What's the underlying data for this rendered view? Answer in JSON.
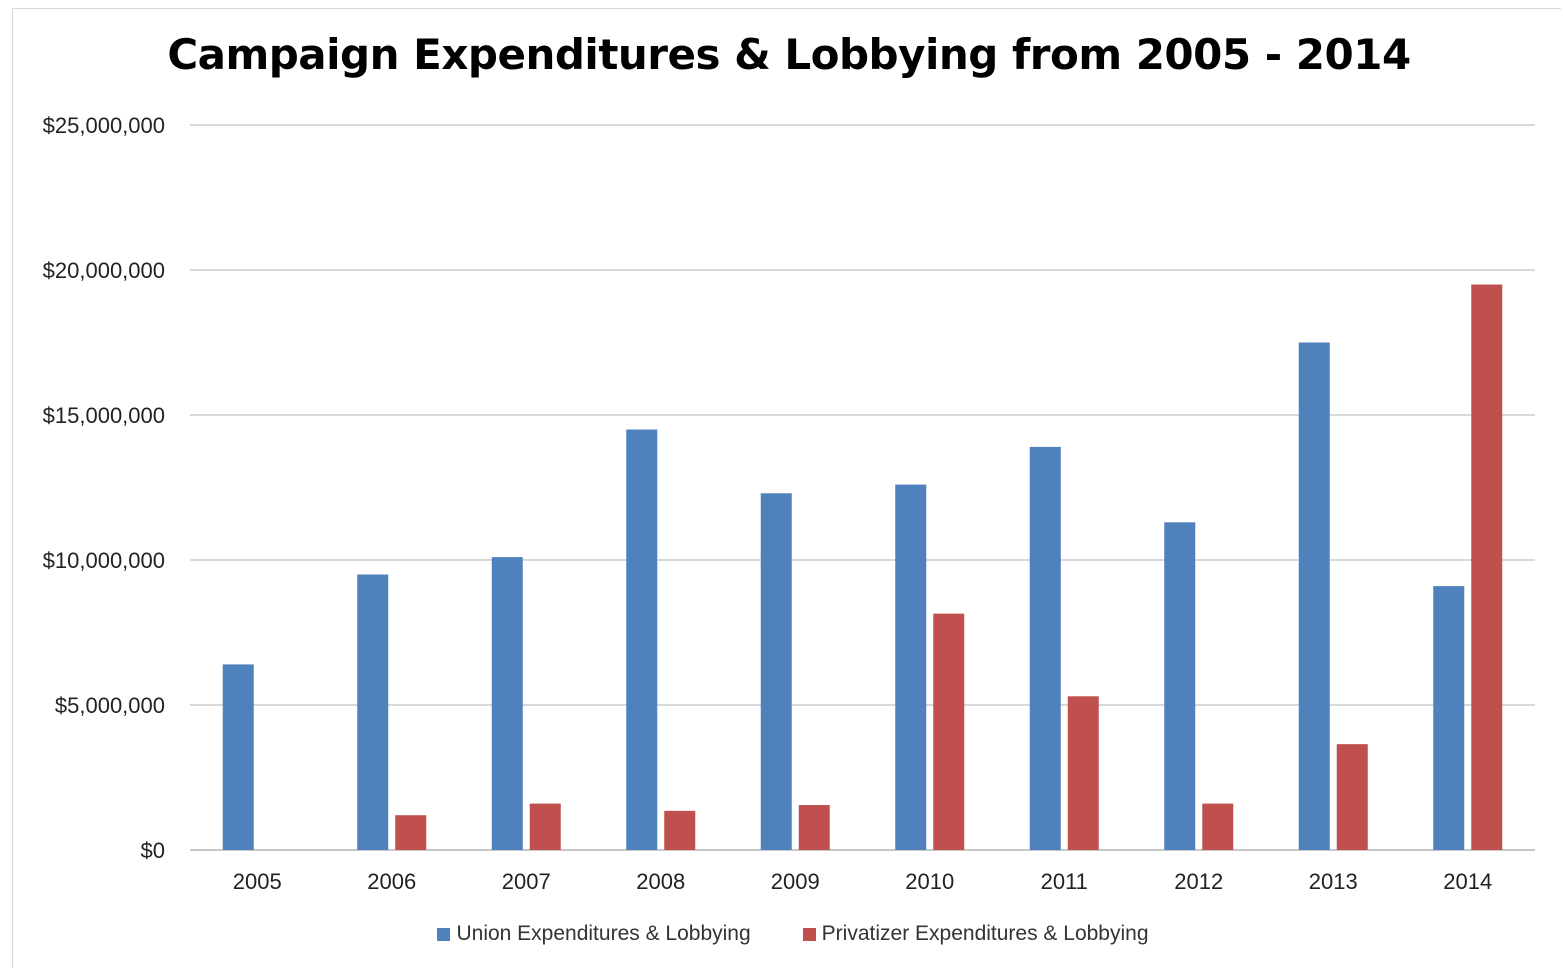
{
  "chart_data": {
    "type": "bar",
    "title": "Campaign Expenditures & Lobbying from 2005 - 2014",
    "categories": [
      "2005",
      "2006",
      "2007",
      "2008",
      "2009",
      "2010",
      "2011",
      "2012",
      "2013",
      "2014"
    ],
    "series": [
      {
        "name": "Union Expenditures & Lobbying",
        "color": "#4f81bd",
        "values": [
          6400000,
          9500000,
          10100000,
          14500000,
          12300000,
          12600000,
          13900000,
          11300000,
          17500000,
          9100000
        ]
      },
      {
        "name": "Privatizer Expenditures & Lobbying",
        "color": "#c0504d",
        "values": [
          0,
          1200000,
          1600000,
          1350000,
          1550000,
          8150000,
          5300000,
          1600000,
          3650000,
          19500000
        ]
      }
    ],
    "y_ticks": [
      "$0",
      "$5,000,000",
      "$10,000,000",
      "$15,000,000",
      "$20,000,000",
      "$25,000,000"
    ],
    "ylim": [
      0,
      25000000
    ],
    "grid": true,
    "legend_position": "bottom"
  }
}
